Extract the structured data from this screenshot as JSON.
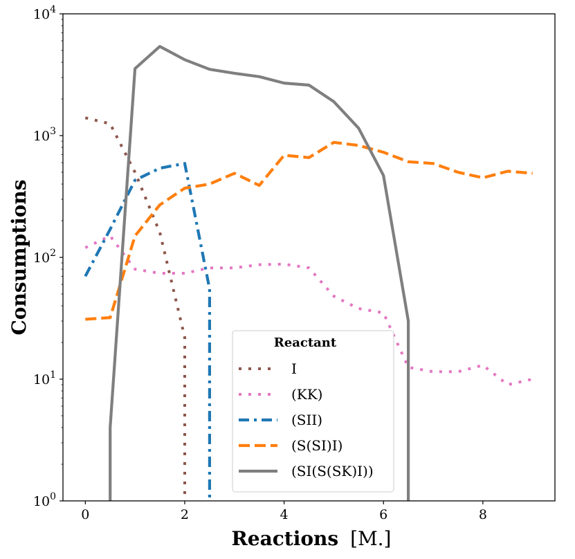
{
  "chart_data": {
    "type": "line",
    "title": "",
    "xlabel_bold": "Reactions",
    "xlabel_unit": "[M.]",
    "ylabel": "Consumptions",
    "xlim": [
      -0.45,
      9.45
    ],
    "ylim": [
      1,
      10000
    ],
    "yscale": "log",
    "x_ticks": [
      0,
      2,
      4,
      6,
      8
    ],
    "x_tick_labels": [
      "0",
      "2",
      "4",
      "6",
      "8"
    ],
    "y_ticks": [
      1,
      10,
      100,
      1000,
      10000
    ],
    "y_tick_labels": [
      {
        "base": "10",
        "exp": "0"
      },
      {
        "base": "10",
        "exp": "1"
      },
      {
        "base": "10",
        "exp": "2"
      },
      {
        "base": "10",
        "exp": "3"
      },
      {
        "base": "10",
        "exp": "4"
      }
    ],
    "grid": false,
    "legend": {
      "title": "Reactant",
      "position": "lower-center"
    },
    "series": [
      {
        "name": "I",
        "color": "#8c564b",
        "style": "dotted",
        "points": [
          [
            0,
            1400
          ],
          [
            0.5,
            1250
          ],
          [
            1,
            500
          ],
          [
            1.5,
            160
          ],
          [
            2,
            22
          ],
          [
            2.0,
            1
          ]
        ]
      },
      {
        "name": "(KK)",
        "color": "#e377c2",
        "style": "dotted",
        "points": [
          [
            0,
            120
          ],
          [
            0.5,
            150
          ],
          [
            1,
            80
          ],
          [
            1.5,
            74
          ],
          [
            2,
            74
          ],
          [
            2.5,
            82
          ],
          [
            3,
            82
          ],
          [
            3.5,
            87
          ],
          [
            4,
            88
          ],
          [
            4.5,
            82
          ],
          [
            5,
            48
          ],
          [
            5.5,
            38
          ],
          [
            6,
            35
          ],
          [
            6.5,
            12.5
          ],
          [
            7,
            11.5
          ],
          [
            7.5,
            11.5
          ],
          [
            8,
            13
          ],
          [
            8.5,
            9
          ],
          [
            9,
            10
          ]
        ]
      },
      {
        "name": "(SII)",
        "color": "#1f77b4",
        "style": "dashdot",
        "points": [
          [
            0,
            70
          ],
          [
            0.5,
            170
          ],
          [
            1,
            430
          ],
          [
            1.5,
            540
          ],
          [
            2,
            590
          ],
          [
            2.5,
            55
          ],
          [
            2.5,
            1
          ]
        ]
      },
      {
        "name": "(S(SI)I)",
        "color": "#ff7f0e",
        "style": "dashed",
        "points": [
          [
            0,
            31
          ],
          [
            0.5,
            32
          ],
          [
            1,
            150
          ],
          [
            1.5,
            270
          ],
          [
            2,
            370
          ],
          [
            2.5,
            400
          ],
          [
            3,
            490
          ],
          [
            3.5,
            390
          ],
          [
            4,
            690
          ],
          [
            4.5,
            660
          ],
          [
            5,
            880
          ],
          [
            5.5,
            830
          ],
          [
            6,
            730
          ],
          [
            6.5,
            610
          ],
          [
            7,
            590
          ],
          [
            7.5,
            500
          ],
          [
            8,
            450
          ],
          [
            8.5,
            510
          ],
          [
            9,
            490
          ]
        ]
      },
      {
        "name": "(SI(S(SK)I))",
        "color": "#7f7f7f",
        "style": "solid",
        "points": [
          [
            0.5,
            1
          ],
          [
            0.5,
            4
          ],
          [
            1,
            3550
          ],
          [
            1.5,
            5400
          ],
          [
            2,
            4200
          ],
          [
            2.5,
            3500
          ],
          [
            3,
            3250
          ],
          [
            3.5,
            3050
          ],
          [
            4,
            2700
          ],
          [
            4.5,
            2600
          ],
          [
            5,
            1900
          ],
          [
            5.5,
            1150
          ],
          [
            6,
            470
          ],
          [
            6.5,
            30
          ],
          [
            6.5,
            1
          ]
        ]
      }
    ]
  }
}
